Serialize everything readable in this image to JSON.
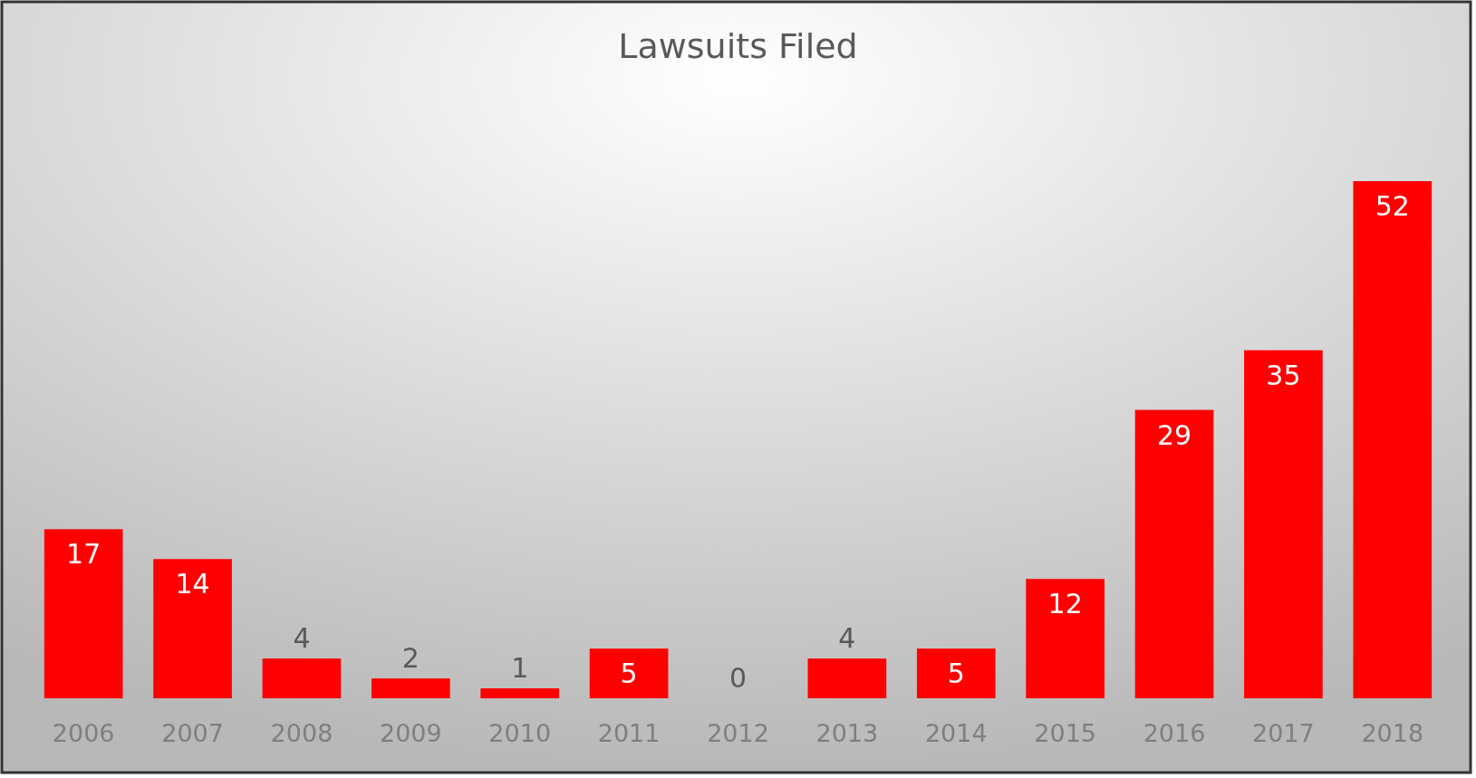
{
  "chart_data": {
    "type": "bar",
    "title": "Lawsuits Filed",
    "categories": [
      "2006",
      "2007",
      "2008",
      "2009",
      "2010",
      "2011",
      "2012",
      "2013",
      "2014",
      "2015",
      "2016",
      "2017",
      "2018"
    ],
    "values": [
      17,
      14,
      4,
      2,
      1,
      5,
      0,
      4,
      5,
      12,
      29,
      35,
      52
    ],
    "color": "#ff0000",
    "data_labels": true
  }
}
